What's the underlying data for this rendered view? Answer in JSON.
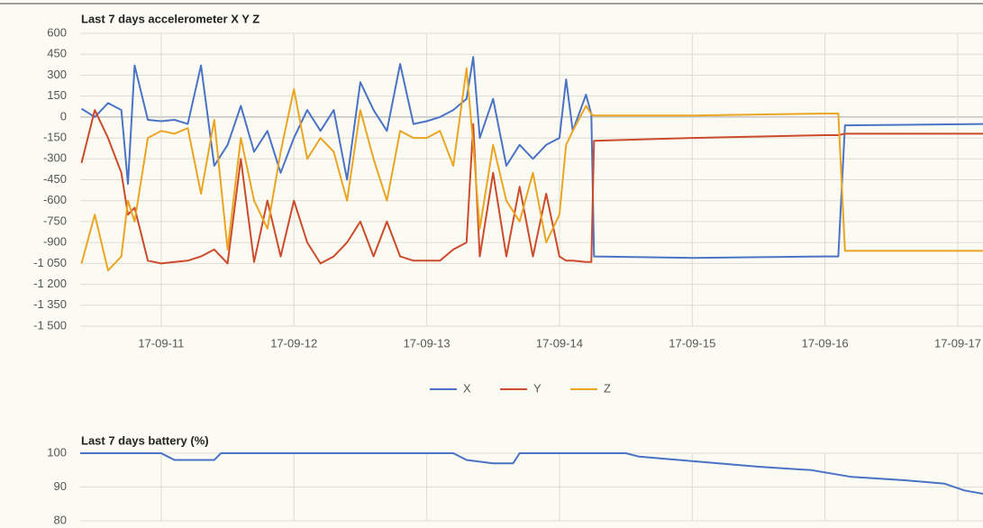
{
  "chart_data": [
    {
      "type": "line",
      "title": "Last 7 days accelerometer X Y Z",
      "x": [
        10.4,
        10.5,
        10.6,
        10.7,
        10.75,
        10.8,
        10.9,
        11.0,
        11.1,
        11.2,
        11.3,
        11.4,
        11.5,
        11.6,
        11.7,
        11.8,
        11.9,
        12.0,
        12.1,
        12.2,
        12.3,
        12.4,
        12.5,
        12.6,
        12.7,
        12.8,
        12.9,
        13.0,
        13.1,
        13.2,
        13.3,
        13.35,
        13.4,
        13.5,
        13.6,
        13.7,
        13.8,
        13.9,
        14.0,
        14.05,
        14.1,
        14.2,
        14.24,
        14.26,
        15.0,
        16.0,
        16.1,
        16.15,
        17.19
      ],
      "series": [
        {
          "name": "X",
          "color": "#4a73c6",
          "values": [
            60,
            0,
            100,
            50,
            -480,
            370,
            -20,
            -30,
            -20,
            -50,
            370,
            -350,
            -200,
            80,
            -250,
            -100,
            -400,
            -150,
            50,
            -100,
            50,
            -450,
            250,
            50,
            -100,
            380,
            -50,
            -30,
            0,
            50,
            130,
            430,
            -150,
            130,
            -350,
            -200,
            -300,
            -200,
            -150,
            270,
            -100,
            160,
            20,
            -1000,
            -1010,
            -1000,
            -1000,
            -60,
            -50
          ]
        },
        {
          "name": "Y",
          "color": "#cc4b2b",
          "values": [
            -330,
            50,
            -150,
            -400,
            -700,
            -650,
            -1030,
            -1050,
            -1040,
            -1030,
            -1000,
            -950,
            -1050,
            -300,
            -1040,
            -600,
            -1000,
            -600,
            -900,
            -1050,
            -1000,
            -900,
            -750,
            -1000,
            -750,
            -1000,
            -1030,
            -1030,
            -1030,
            -950,
            -900,
            -50,
            -1000,
            -400,
            -1000,
            -500,
            -1000,
            -550,
            -1000,
            -1030,
            -1030,
            -1040,
            -1040,
            -170,
            -150,
            -130,
            -130,
            -120,
            -120
          ]
        },
        {
          "name": "Z",
          "color": "#eba523",
          "values": [
            -1050,
            -700,
            -1100,
            -1000,
            -600,
            -750,
            -150,
            -100,
            -120,
            -80,
            -550,
            -20,
            -950,
            -150,
            -600,
            -800,
            -250,
            200,
            -300,
            -150,
            -250,
            -600,
            50,
            -300,
            -600,
            -100,
            -150,
            -150,
            -100,
            -350,
            350,
            -200,
            -800,
            -200,
            -600,
            -750,
            -400,
            -900,
            -700,
            -200,
            -100,
            80,
            20,
            10,
            10,
            25,
            25,
            -960,
            -960
          ]
        }
      ],
      "xlim": [
        10.39,
        17.19
      ],
      "xticks": [
        {
          "value": 11,
          "label": "17-09-11"
        },
        {
          "value": 12,
          "label": "17-09-12"
        },
        {
          "value": 13,
          "label": "17-09-13"
        },
        {
          "value": 14,
          "label": "17-09-14"
        },
        {
          "value": 15,
          "label": "17-09-15"
        },
        {
          "value": 16,
          "label": "17-09-16"
        },
        {
          "value": 17,
          "label": "17-09-17"
        }
      ],
      "ylim": [
        -1500,
        600
      ],
      "yticks": [
        600,
        450,
        300,
        150,
        0,
        -150,
        -300,
        -450,
        -600,
        -750,
        -900,
        {
          "value": -1050,
          "label": "-1 050"
        },
        {
          "value": -1200,
          "label": "-1 200"
        },
        {
          "value": -1350,
          "label": "-1 350"
        },
        {
          "value": -1500,
          "label": "-1 500"
        }
      ],
      "grid": true,
      "legend": "bottom"
    },
    {
      "type": "line",
      "title": "Last 7 days battery (%)",
      "x": [
        10.39,
        11.0,
        11.05,
        11.1,
        11.4,
        11.45,
        13.2,
        13.3,
        13.5,
        13.65,
        13.7,
        14.5,
        14.6,
        14.9,
        15.2,
        15.5,
        15.9,
        16.2,
        16.6,
        16.9,
        17.05,
        17.19
      ],
      "values": [
        100,
        100,
        99,
        98,
        98,
        100,
        100,
        98,
        97,
        97,
        100,
        100,
        99,
        98,
        97,
        96,
        95,
        93,
        92,
        91,
        89,
        88
      ],
      "color": "#4a73c6",
      "xlim": [
        10.39,
        17.19
      ],
      "xticks": [
        11,
        12,
        13,
        14,
        15,
        16,
        17
      ],
      "ylim": [
        80,
        100
      ],
      "yticks": [
        100,
        90,
        80
      ],
      "grid": true
    }
  ]
}
